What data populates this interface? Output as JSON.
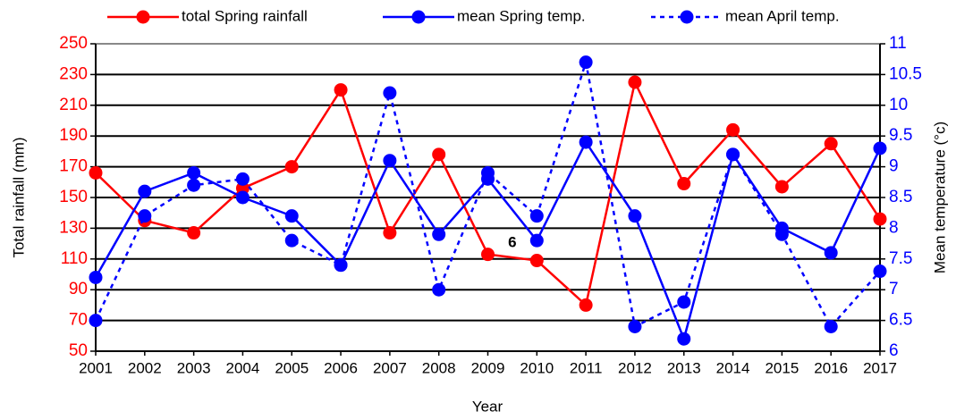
{
  "chart_data": {
    "type": "line",
    "categories": [
      "2001",
      "2002",
      "2003",
      "2004",
      "2005",
      "2006",
      "2007",
      "2008",
      "2009",
      "2010",
      "2011",
      "2012",
      "2013",
      "2014",
      "2015",
      "2016",
      "2017"
    ],
    "series": [
      {
        "name": "total Spring rainfall",
        "color": "#ff0000",
        "line_style": "solid",
        "axis": "y",
        "values": [
          166,
          135,
          127,
          156,
          170,
          220,
          127,
          178,
          113,
          109,
          80,
          225,
          159,
          194,
          157,
          185,
          136
        ]
      },
      {
        "name": "mean Spring temp.",
        "color": "#0000ff",
        "line_style": "solid",
        "axis": "y2",
        "values": [
          7.2,
          8.6,
          8.9,
          8.5,
          8.2,
          7.4,
          9.1,
          7.9,
          8.8,
          7.8,
          9.4,
          8.2,
          6.2,
          9.2,
          8.0,
          7.6,
          9.3
        ]
      },
      {
        "name": "mean April temp.",
        "color": "#0000ff",
        "line_style": "dotted",
        "axis": "y2",
        "values": [
          6.5,
          8.2,
          8.7,
          8.8,
          7.8,
          7.4,
          10.2,
          7.0,
          8.9,
          8.2,
          10.7,
          6.4,
          6.8,
          9.2,
          7.9,
          6.4,
          7.3
        ]
      }
    ],
    "xlabel": "Year",
    "ylabel": "Total rainfall (mm)",
    "y2label": "Mean temperature (°c)",
    "annotation": "6",
    "ylim": [
      50,
      250
    ],
    "yticks": [
      50,
      70,
      90,
      110,
      130,
      150,
      170,
      190,
      210,
      230,
      250
    ],
    "y2lim": [
      6,
      11
    ],
    "y2ticks": [
      6,
      6.5,
      7,
      7.5,
      8,
      8.5,
      9,
      9.5,
      10,
      10.5,
      11
    ],
    "ytick_color": "#ff0000",
    "y2tick_color": "#0000ff",
    "grid": true,
    "legend": "top"
  }
}
